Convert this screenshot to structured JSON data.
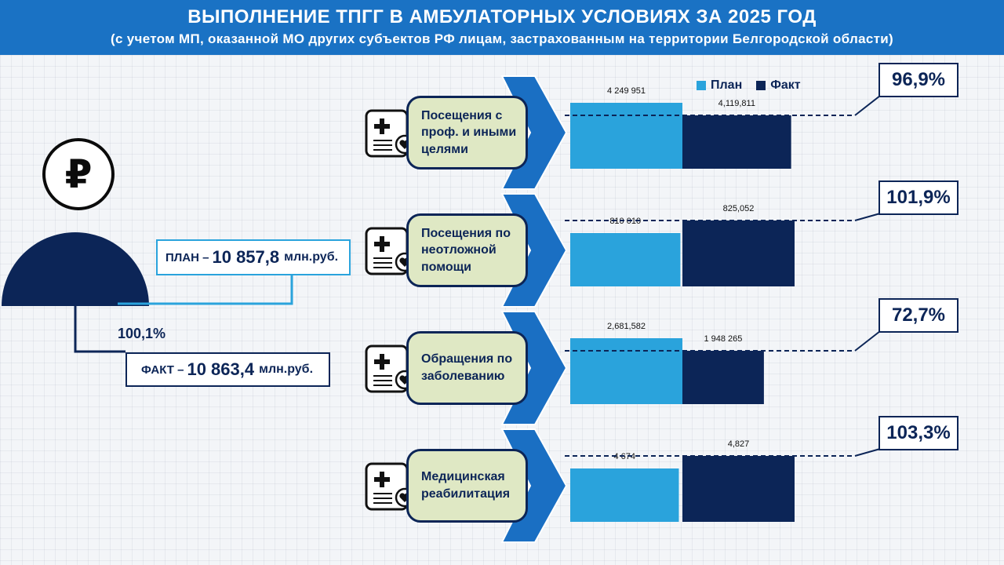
{
  "header": {
    "title": "ВЫПОЛНЕНИЕ ТПГГ В АМБУЛАТОРНЫХ УСЛОВИЯХ ЗА 2025 ГОД",
    "subtitle": "(с учетом МП, оказанной МО других субъектов РФ лицам, застрахованным на территории Белгородской области)"
  },
  "summary": {
    "plan_label": "ПЛАН –",
    "plan_value": "10 857,8",
    "fact_label": "ФАКТ –",
    "fact_value": "10 863,4",
    "unit": "млн.руб.",
    "overall_percent": "100,1%",
    "currency_icon": "ruble-icon"
  },
  "legend": {
    "plan": "План",
    "fact": "Факт"
  },
  "colors": {
    "plan": "#2aa3dc",
    "fact": "#0c2557",
    "header": "#1a72c4",
    "arrow": "#1a6fc3",
    "card": "#dfe8c4"
  },
  "chart_data": {
    "type": "bar",
    "categories": [
      "Посещения с проф. и иными целями",
      "Посещения по неотложной помощи",
      "Обращения по заболеванию",
      "Медицинская реабилитация"
    ],
    "series": [
      {
        "name": "План",
        "values": [
          4249951,
          810010,
          2681582,
          4674
        ]
      },
      {
        "name": "Факт",
        "values": [
          4119811,
          825052,
          1948265,
          4827
        ]
      }
    ],
    "value_labels": {
      "plan": [
        "4 249 951",
        "810 010",
        "2,681,582",
        "4 674"
      ],
      "fact": [
        "4,119,811",
        "825,052",
        "1 948 265",
        "4,827"
      ]
    },
    "percent": [
      "96,9%",
      "101,9%",
      "72,7%",
      "103,3%"
    ],
    "legend_position": "top"
  },
  "rows": [
    {
      "lines": [
        "Посещения с",
        "проф. и иными",
        "целями"
      ],
      "icon": "medical-record-icon"
    },
    {
      "lines": [
        "Посещения по",
        "неотложной",
        "помощи"
      ],
      "icon": "medical-record-icon"
    },
    {
      "lines": [
        "Обращения по",
        "заболеванию"
      ],
      "icon": "medical-record-icon"
    },
    {
      "lines": [
        "Медицинская",
        "реабилитация"
      ],
      "icon": "medical-record-icon"
    }
  ]
}
